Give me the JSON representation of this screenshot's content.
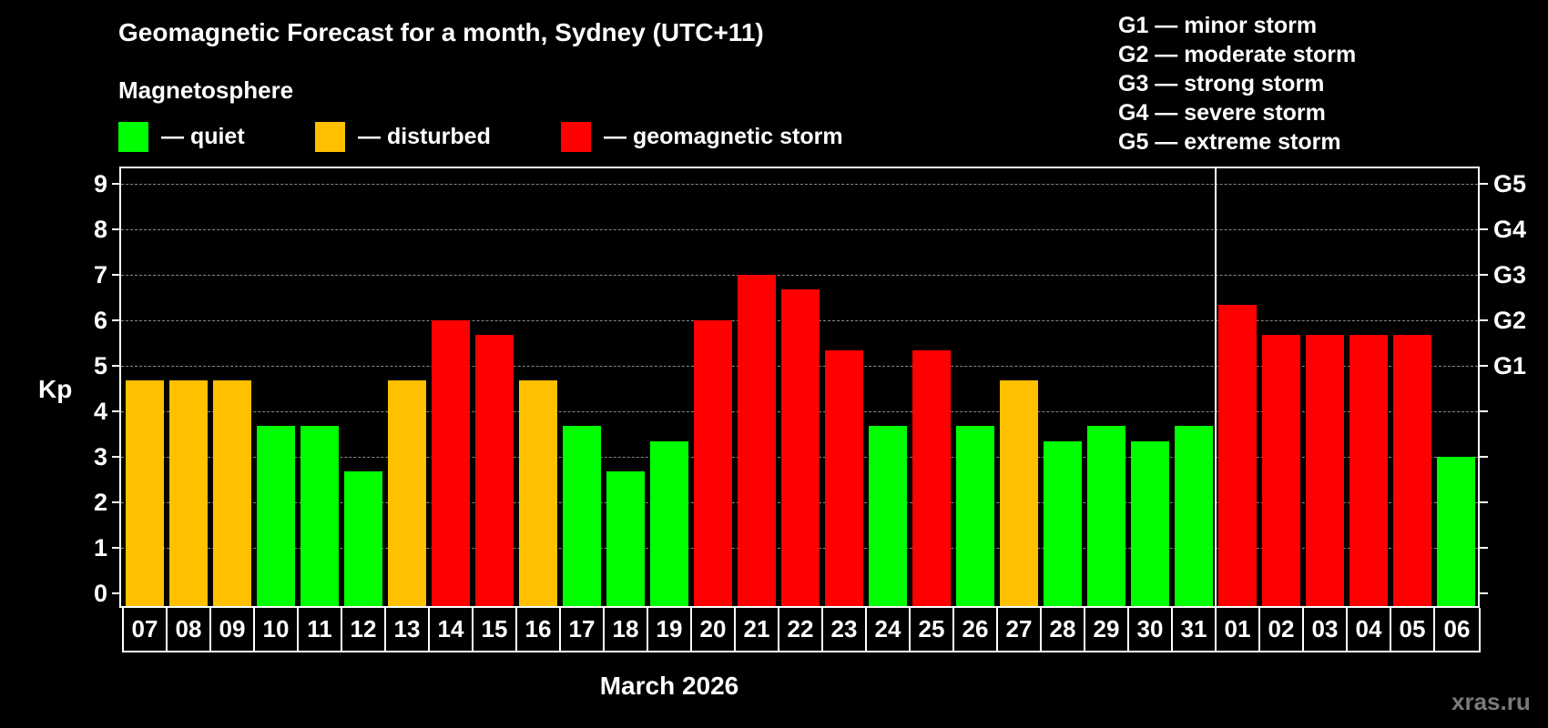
{
  "title": "Geomagnetic Forecast for a month, Sydney (UTC+11)",
  "legend": {
    "heading": "Magnetosphere",
    "items": [
      {
        "label": "— quiet",
        "color": "#00ff00"
      },
      {
        "label": "— disturbed",
        "color": "#ffc000"
      },
      {
        "label": "— geomagnetic storm",
        "color": "#ff0000"
      }
    ]
  },
  "storm_scale": [
    "G1 — minor storm",
    "G2 — moderate storm",
    "G3 — strong storm",
    "G4 — severe storm",
    "G5 — extreme storm"
  ],
  "axis": {
    "y_label": "Kp",
    "y_ticks": [
      "0",
      "1",
      "2",
      "3",
      "4",
      "5",
      "6",
      "7",
      "8",
      "9"
    ],
    "right_ticks": {
      "5": "G1",
      "6": "G2",
      "7": "G3",
      "8": "G4",
      "9": "G5"
    },
    "x_label": "March 2026"
  },
  "watermark": "xras.ru",
  "chart_data": {
    "type": "bar",
    "title": "Geomagnetic Forecast for a month, Sydney (UTC+11)",
    "xlabel": "March 2026",
    "ylabel": "Kp",
    "ylim": [
      0,
      9
    ],
    "grid": true,
    "categories": [
      "07",
      "08",
      "09",
      "10",
      "11",
      "12",
      "13",
      "14",
      "15",
      "16",
      "17",
      "18",
      "19",
      "20",
      "21",
      "22",
      "23",
      "24",
      "25",
      "26",
      "27",
      "28",
      "29",
      "30",
      "31",
      "01",
      "02",
      "03",
      "04",
      "05",
      "06"
    ],
    "values": [
      4.67,
      4.67,
      4.67,
      3.67,
      3.67,
      2.67,
      4.67,
      6.0,
      5.67,
      4.67,
      3.67,
      2.67,
      3.33,
      6.0,
      7.0,
      6.67,
      5.33,
      3.67,
      5.33,
      3.67,
      4.67,
      3.33,
      3.67,
      3.33,
      3.67,
      6.33,
      5.67,
      5.67,
      5.67,
      5.67,
      3.0
    ],
    "status": [
      "disturbed",
      "disturbed",
      "disturbed",
      "quiet",
      "quiet",
      "quiet",
      "disturbed",
      "storm",
      "storm",
      "disturbed",
      "quiet",
      "quiet",
      "quiet",
      "storm",
      "storm",
      "storm",
      "storm",
      "quiet",
      "storm",
      "quiet",
      "disturbed",
      "quiet",
      "quiet",
      "quiet",
      "quiet",
      "storm",
      "storm",
      "storm",
      "storm",
      "storm",
      "quiet"
    ],
    "colors": {
      "quiet": "#00ff00",
      "disturbed": "#ffc000",
      "storm": "#ff0000"
    },
    "right_axis_labels": {
      "5": "G1",
      "6": "G2",
      "7": "G3",
      "8": "G4",
      "9": "G5"
    },
    "month_separator_after": "31"
  }
}
